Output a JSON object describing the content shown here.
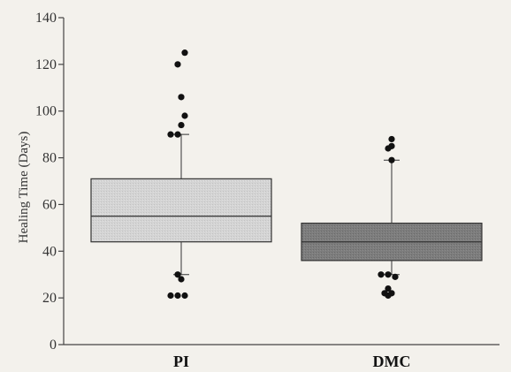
{
  "chart_data": {
    "type": "box",
    "title": "",
    "xlabel": "",
    "ylabel": "Healing Time (Days)",
    "ylim": [
      0,
      140
    ],
    "yticks": [
      0,
      20,
      40,
      60,
      80,
      100,
      120,
      140
    ],
    "grid": false,
    "categories": [
      "PI",
      "DMC"
    ],
    "colors": {
      "PI": "#d4d4d4",
      "DMC": "#7d7d7d"
    },
    "boxes": [
      {
        "category": "PI",
        "whisker_low": 30,
        "q1": 44,
        "median": 55,
        "q3": 71,
        "whisker_high": 90,
        "outliers": [
          125,
          120,
          106,
          98,
          94,
          90,
          90,
          30,
          28,
          21,
          21,
          21
        ]
      },
      {
        "category": "DMC",
        "whisker_low": 30,
        "q1": 36,
        "median": 44,
        "q3": 52,
        "whisker_high": 79,
        "outliers": [
          88,
          85,
          84,
          79,
          30,
          30,
          29,
          24,
          22,
          22,
          21
        ]
      }
    ]
  }
}
